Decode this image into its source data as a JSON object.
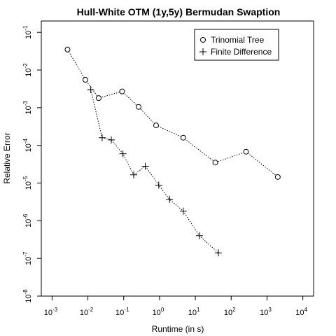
{
  "chart_data": {
    "type": "scatter",
    "title": "Hull-White OTM (1y,5y) Bermudan Swaption",
    "xlabel": "Runtime (in s)",
    "ylabel": "Relative Error",
    "x_scale": "log",
    "y_scale": "log",
    "xlim": [
      0.0005,
      20000
    ],
    "ylim": [
      1e-08,
      0.2
    ],
    "x_ticks": [
      {
        "base": "10",
        "exp": "-3",
        "value": 0.001
      },
      {
        "base": "10",
        "exp": "-2",
        "value": 0.01
      },
      {
        "base": "10",
        "exp": "-1",
        "value": 0.1
      },
      {
        "base": "10",
        "exp": "0",
        "value": 1
      },
      {
        "base": "10",
        "exp": "1",
        "value": 10
      },
      {
        "base": "10",
        "exp": "2",
        "value": 100
      },
      {
        "base": "10",
        "exp": "3",
        "value": 1000
      },
      {
        "base": "10",
        "exp": "4",
        "value": 10000
      }
    ],
    "y_ticks": [
      {
        "base": "10",
        "exp": "-1",
        "value": 0.1
      },
      {
        "base": "10",
        "exp": "-2",
        "value": 0.01
      },
      {
        "base": "10",
        "exp": "-3",
        "value": 0.001
      },
      {
        "base": "10",
        "exp": "-4",
        "value": 0.0001
      },
      {
        "base": "10",
        "exp": "-5",
        "value": 1e-05
      },
      {
        "base": "10",
        "exp": "-6",
        "value": 1e-06
      },
      {
        "base": "10",
        "exp": "-7",
        "value": 1e-07
      },
      {
        "base": "10",
        "exp": "-8",
        "value": 1e-08
      }
    ],
    "legend_position": "top-right",
    "grid": false,
    "series": [
      {
        "name": "Trinomial Tree",
        "marker": "circle",
        "line": "dotted",
        "x": [
          0.0027,
          0.0085,
          0.02,
          0.09,
          0.26,
          0.8,
          4.6,
          36,
          260,
          2000
        ],
        "y": [
          0.035,
          0.0055,
          0.0018,
          0.0027,
          0.00105,
          0.00034,
          0.00016,
          3.5e-05,
          6.8e-05,
          1.45e-05
        ]
      },
      {
        "name": "Finite Difference",
        "marker": "plus",
        "line": "dotted",
        "x": [
          0.012,
          0.025,
          0.045,
          0.095,
          0.19,
          0.4,
          0.95,
          1.9,
          4.6,
          13,
          44
        ],
        "y": [
          0.003,
          0.00016,
          0.00014,
          6e-05,
          1.65e-05,
          2.8e-05,
          8.8e-06,
          3.7e-06,
          1.8e-06,
          4e-07,
          1.4e-07
        ]
      }
    ]
  }
}
